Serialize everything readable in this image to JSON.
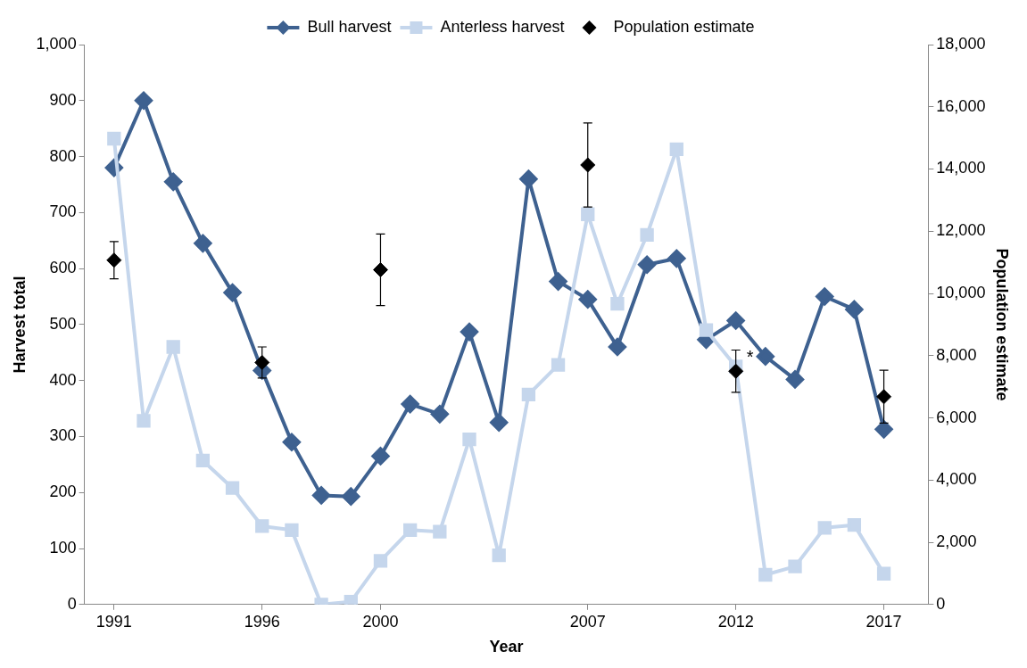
{
  "chart_data": {
    "type": "line",
    "xlabel": "Year",
    "ylabel": "Harvest total",
    "y2label": "Population estimate",
    "x": [
      1991,
      1992,
      1993,
      1994,
      1995,
      1996,
      1997,
      1998,
      1999,
      2000,
      2001,
      2002,
      2003,
      2004,
      2005,
      2006,
      2007,
      2008,
      2009,
      2010,
      2011,
      2012,
      2013,
      2014,
      2015,
      2016,
      2017
    ],
    "xlim": [
      1990,
      2018.5
    ],
    "xticks": [
      1991,
      1996,
      2000,
      2007,
      2012,
      2017
    ],
    "ylim": [
      0,
      1000
    ],
    "yticks": [
      0,
      {
        "value": 100,
        "label": "100"
      },
      {
        "value": 200,
        "label": "200"
      },
      {
        "value": 300,
        "label": "300"
      },
      {
        "value": 400,
        "label": "400"
      },
      {
        "value": 500,
        "label": "500"
      },
      {
        "value": 600,
        "label": "600"
      },
      {
        "value": 700,
        "label": "700"
      },
      {
        "value": 800,
        "label": "800"
      },
      {
        "value": 900,
        "label": "900"
      },
      {
        "value": 1000,
        "label": "1,000"
      }
    ],
    "y2lim": [
      0,
      18000
    ],
    "y2ticks": [
      0,
      {
        "value": 2000,
        "label": "2,000"
      },
      {
        "value": 4000,
        "label": "4,000"
      },
      {
        "value": 6000,
        "label": "6,000"
      },
      {
        "value": 8000,
        "label": "8,000"
      },
      {
        "value": 10000,
        "label": "10,000"
      },
      {
        "value": 12000,
        "label": "12,000"
      },
      {
        "value": 14000,
        "label": "14,000"
      },
      {
        "value": 16000,
        "label": "16,000"
      },
      {
        "value": 18000,
        "label": "18,000"
      }
    ],
    "grid": false,
    "legend": "top",
    "series": [
      {
        "name": "Bull harvest",
        "color": "#3e6190",
        "marker": "diamond",
        "values": [
          780,
          900,
          755,
          645,
          557,
          418,
          290,
          195,
          193,
          265,
          358,
          340,
          487,
          325,
          760,
          577,
          545,
          460,
          607,
          618,
          473,
          507,
          443,
          402,
          550,
          527,
          313
        ]
      },
      {
        "name": "Anterless harvest",
        "color": "#c5d6ec",
        "marker": "square",
        "values": [
          832,
          328,
          460,
          257,
          208,
          140,
          133,
          0,
          5,
          78,
          133,
          130,
          295,
          88,
          375,
          428,
          697,
          537,
          660,
          813,
          490,
          425,
          53,
          68,
          137,
          142,
          55
        ]
      },
      {
        "name": "Population estimate",
        "type": "scatter",
        "axis": "y2",
        "color": "#000000",
        "marker": "diamond",
        "x": [
          1991,
          1996,
          2000,
          2007,
          2012,
          2017
        ],
        "values": [
          11070,
          7780,
          10760,
          14130,
          7500,
          6680
        ],
        "errors": [
          600,
          500,
          1150,
          1350,
          680,
          850
        ]
      }
    ],
    "annotations": [
      {
        "text": "*",
        "x": 2012,
        "y": 425
      }
    ]
  }
}
